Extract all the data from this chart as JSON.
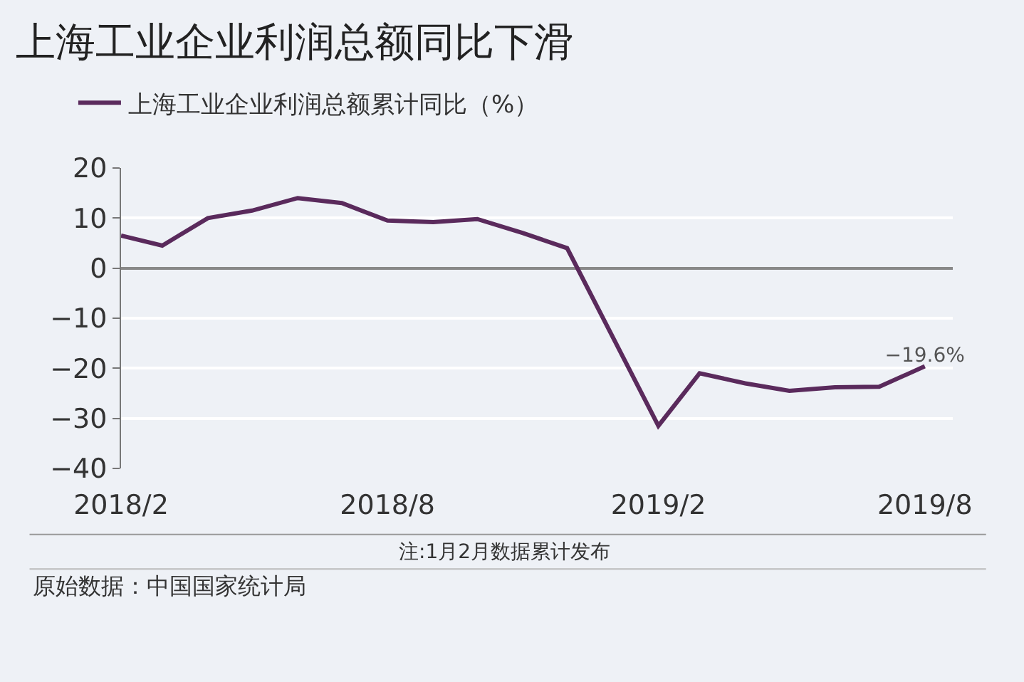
{
  "chart_data": {
    "type": "line",
    "title": "上海工业企业利润总额同比下滑",
    "x": [
      "2018-02",
      "2018-03",
      "2018-04",
      "2018-05",
      "2018-06",
      "2018-07",
      "2018-08",
      "2018-09",
      "2018-10",
      "2018-11",
      "2018-12",
      "2019-02",
      "2019-03",
      "2019-04",
      "2019-05",
      "2019-06",
      "2019-07",
      "2019-08"
    ],
    "series": [
      {
        "name": "上海工业企业利润总额累计同比（%）",
        "color": "#5a2a5c",
        "values": [
          6.5,
          4.5,
          10,
          11.5,
          14,
          13,
          9.5,
          9.2,
          9.8,
          7,
          4,
          -31.5,
          -21,
          -23,
          -24.5,
          -23.8,
          -23.7,
          -19.6
        ],
        "value_labels": [
          null,
          null,
          null,
          null,
          null,
          null,
          null,
          null,
          null,
          null,
          null,
          null,
          null,
          null,
          null,
          null,
          null,
          "−19.6%"
        ]
      }
    ],
    "xlim": [
      "2018-02",
      "2019-08-20"
    ],
    "xticks": [
      {
        "value": "2018-02",
        "label": "2018/2"
      },
      {
        "value": "2018-08",
        "label": "2018/8"
      },
      {
        "value": "2019-02",
        "label": "2019/2"
      },
      {
        "value": "2019-08",
        "label": "2019/8"
      }
    ],
    "ylim": [
      -40,
      20
    ],
    "yticks": [
      20,
      10,
      0,
      {
        "value": -10,
        "label": "−10"
      },
      {
        "value": -20,
        "label": "−20"
      },
      {
        "value": -30,
        "label": "−30"
      },
      {
        "value": -40,
        "label": "−40"
      }
    ],
    "grid": "y",
    "legend": "top left",
    "marker": "none",
    "line_style": "solid",
    "annotations": [
      "注:1月2月数据累计发布",
      "原始数据：中国国家统计局"
    ]
  }
}
